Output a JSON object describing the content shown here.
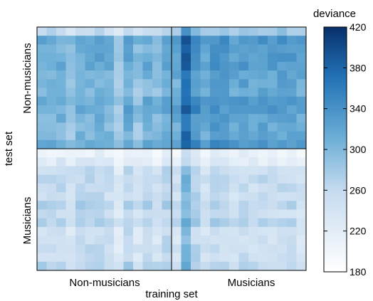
{
  "chart_data": {
    "type": "heatmap",
    "title": "",
    "xlabel": "training set",
    "ylabel": "test set",
    "x_groups": [
      "Non-musicians",
      "Musicians"
    ],
    "y_groups": [
      "Non-musicians",
      "Musicians"
    ],
    "grid_size": 28,
    "group_size": 14,
    "colorbar": {
      "label": "deviance",
      "min": 180,
      "max": 420,
      "ticks": [
        180,
        220,
        260,
        300,
        340,
        380,
        420
      ],
      "color_low": "#ffffff",
      "color_high": "#08306b"
    },
    "block_means": {
      "nonmusicians_test_nonmusicians_train": 300,
      "nonmusicians_test_musicians_train": 320,
      "musicians_test_nonmusicians_train": 255,
      "musicians_test_musicians_train": 250
    },
    "grid": true,
    "legend": "right"
  }
}
